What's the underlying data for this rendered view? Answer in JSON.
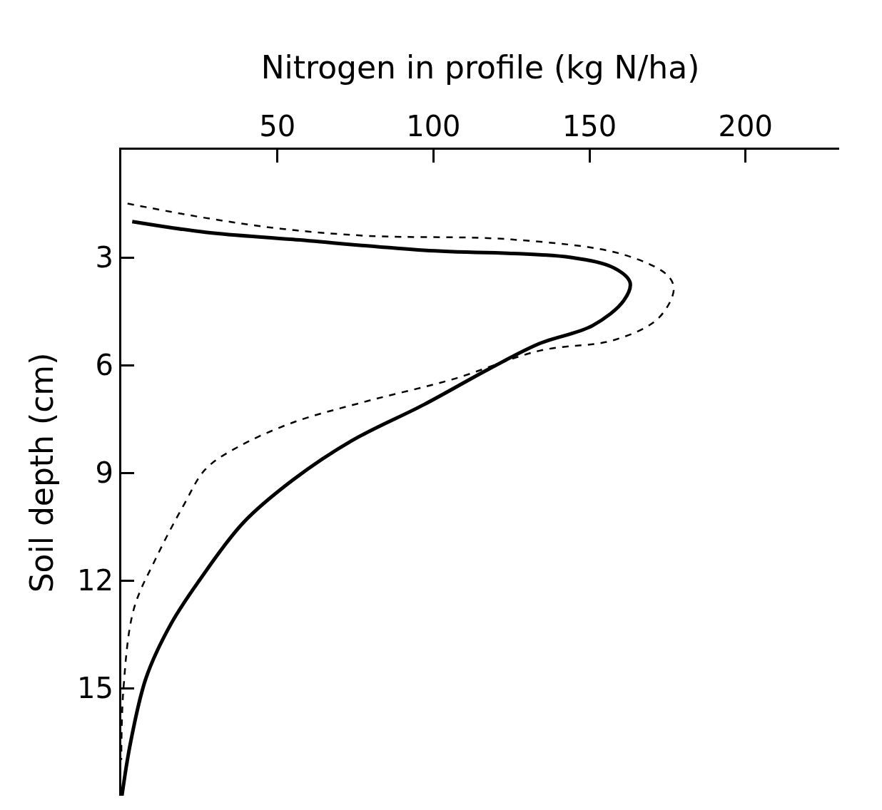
{
  "chart_data": {
    "type": "line",
    "xlabel": "Nitrogen in profile (kg N/ha)",
    "ylabel": "Soil depth (cm)",
    "xlim": [
      0,
      230
    ],
    "xticks": [
      50,
      100,
      150,
      200
    ],
    "ylim": [
      18,
      0
    ],
    "yticks": [
      3,
      6,
      9,
      12,
      15
    ],
    "marker": "none",
    "series": [
      {
        "color": "#000000",
        "line_style": "solid",
        "x": [
          3.5,
          27,
          55,
          97,
          144,
          158,
          163,
          161,
          151,
          134,
          118,
          97,
          74,
          55,
          39,
          25,
          16,
          8,
          3,
          0.2
        ],
        "values": [
          2.0,
          2.3,
          2.5,
          2.8,
          3.0,
          3.3,
          3.7,
          4.2,
          4.9,
          5.4,
          6.1,
          7.1,
          8.1,
          9.2,
          10.4,
          12.0,
          13.2,
          14.7,
          16.5,
          18
        ]
      },
      {
        "color": "#000000",
        "line_style": "dashed",
        "x": [
          2,
          27,
          51,
          79,
          125,
          160,
          175,
          177,
          172,
          158,
          134,
          106,
          79,
          55,
          37,
          27,
          20,
          11,
          4,
          0.7,
          0
        ],
        "values": [
          1.5,
          1.9,
          2.2,
          2.4,
          2.5,
          2.9,
          3.5,
          3.9,
          4.7,
          5.3,
          5.6,
          6.4,
          7.0,
          7.6,
          8.3,
          8.9,
          9.9,
          11.4,
          12.8,
          15,
          17
        ]
      }
    ]
  }
}
